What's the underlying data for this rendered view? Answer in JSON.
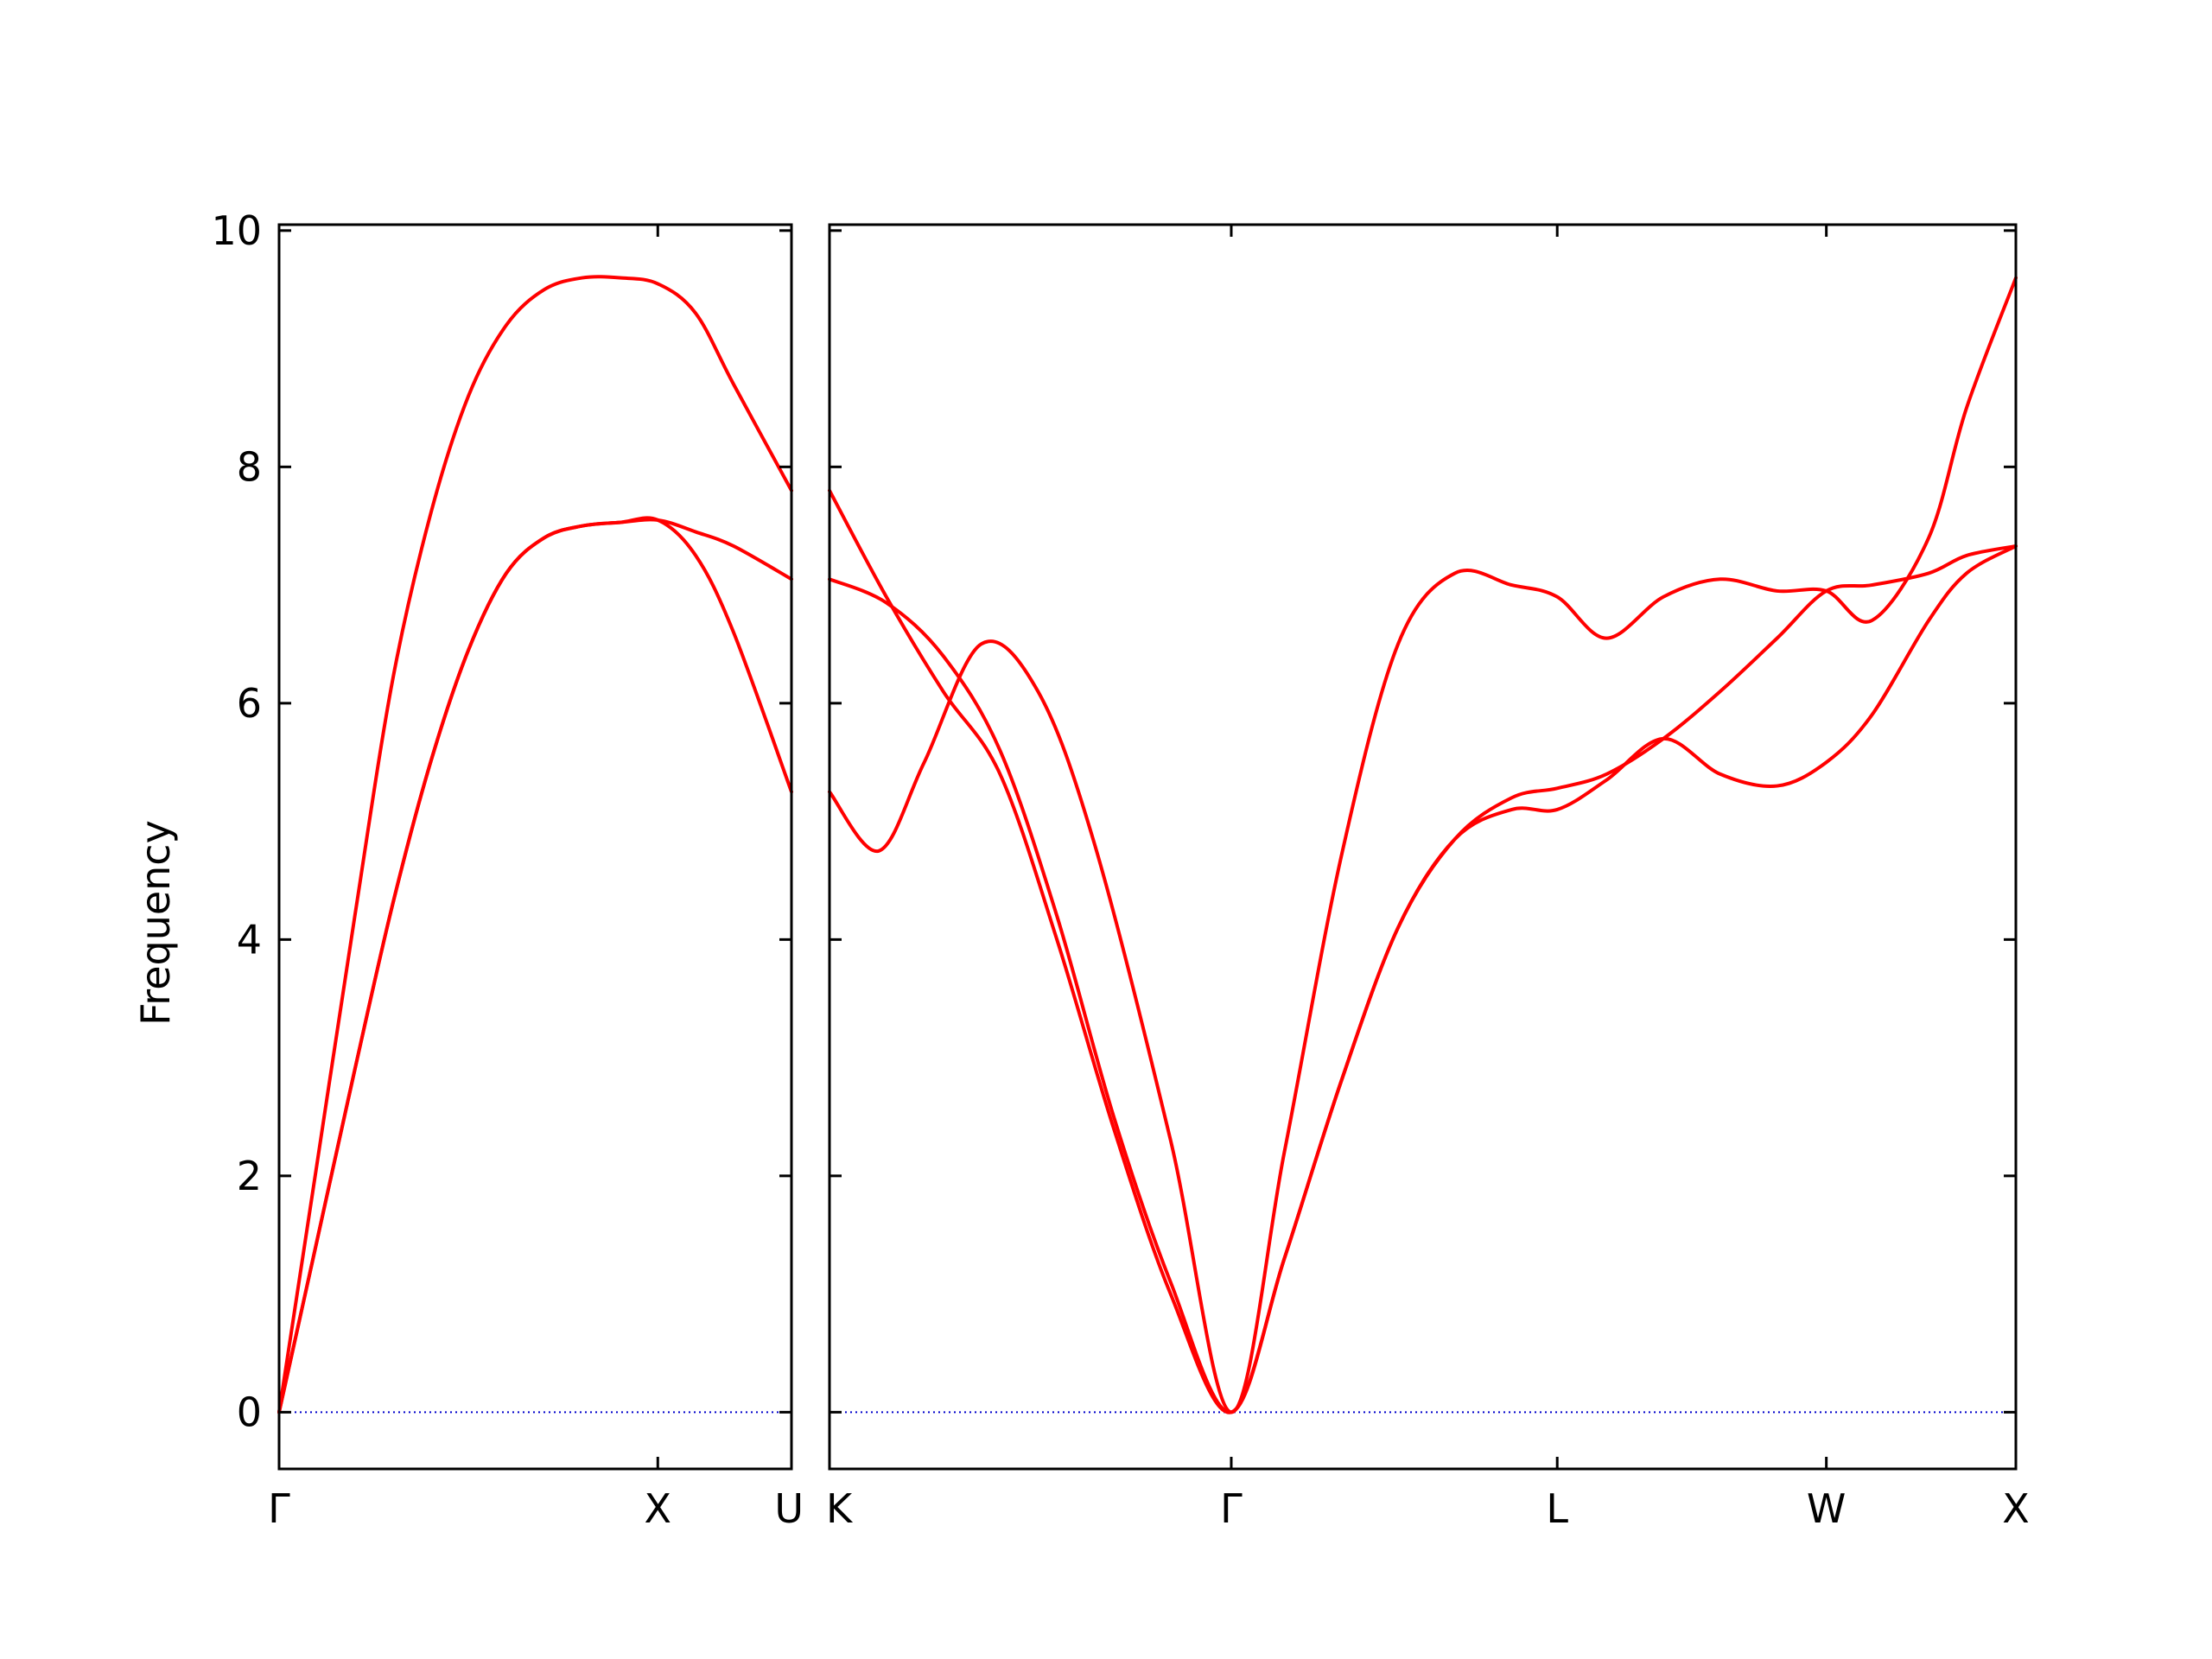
{
  "chart_data": {
    "type": "line",
    "title": "",
    "ylabel": "Frequency",
    "ylim": [
      -0.48,
      10.05
    ],
    "y_ticks": [
      "0",
      "2",
      "4",
      "6",
      "8",
      "10"
    ],
    "colors": {
      "bands": "#ff0000",
      "zero_line": "#0000cc",
      "axes": "#000000",
      "background": "#ffffff"
    },
    "grid": false,
    "panels": [
      {
        "name": "Γ-X-U",
        "x_labels": [
          "Γ",
          "X",
          "U"
        ],
        "x_positions": [
          0,
          1,
          1.353
        ],
        "series": [
          {
            "x": [
              0,
              0.1,
              0.2,
              0.3,
              0.4,
              0.5,
              0.6,
              0.7,
              0.8,
              0.9,
              1.0,
              1.1,
              1.2,
              1.353
            ],
            "y": [
              0,
              1.45,
              2.9,
              4.3,
              5.5,
              6.45,
              7.1,
              7.4,
              7.5,
              7.53,
              7.55,
              7.45,
              7.33,
              7.05
            ]
          },
          {
            "x": [
              0,
              0.1,
              0.2,
              0.3,
              0.4,
              0.5,
              0.6,
              0.7,
              0.8,
              0.9,
              1.0,
              1.1,
              1.2,
              1.353
            ],
            "y": [
              0,
              2.1,
              4.2,
              6.2,
              7.6,
              8.6,
              9.2,
              9.5,
              9.6,
              9.6,
              9.55,
              9.3,
              8.7,
              7.8
            ]
          },
          {
            "x": [
              0,
              0.1,
              0.2,
              0.3,
              0.4,
              0.5,
              0.6,
              0.7,
              0.8,
              0.9,
              1.0,
              1.1,
              1.2,
              1.353
            ],
            "y": [
              0,
              1.45,
              2.9,
              4.3,
              5.5,
              6.45,
              7.1,
              7.4,
              7.5,
              7.53,
              7.55,
              7.25,
              6.6,
              5.25
            ]
          }
        ]
      },
      {
        "name": "K-Γ-L-W-X",
        "x_labels": [
          "K",
          "Γ",
          "L",
          "W",
          "X"
        ],
        "x_positions": [
          0,
          1.06,
          1.92,
          2.63,
          3.13
        ],
        "series": [
          {
            "x": [
              0,
              0.15,
              0.3,
              0.45,
              0.6,
              0.75,
              0.9,
              1.06,
              1.2,
              1.35,
              1.5,
              1.65,
              1.8,
              1.92,
              2.05,
              2.2,
              2.35,
              2.5,
              2.63,
              2.75,
              2.9,
              3.0,
              3.13
            ],
            "y": [
              7.05,
              6.85,
              6.4,
              5.6,
              4.2,
              2.5,
              1.1,
              0,
              1.3,
              2.8,
              4.1,
              4.85,
              5.2,
              5.28,
              5.4,
              5.7,
              6.1,
              6.55,
              6.95,
              7.0,
              7.1,
              7.25,
              7.33
            ]
          },
          {
            "x": [
              0,
              0.15,
              0.3,
              0.45,
              0.6,
              0.75,
              0.9,
              1.06,
              1.2,
              1.35,
              1.5,
              1.65,
              1.8,
              1.92,
              2.05,
              2.2,
              2.35,
              2.5,
              2.63,
              2.75,
              2.9,
              3.0,
              3.13
            ],
            "y": [
              7.8,
              6.9,
              6.1,
              5.4,
              4.0,
              2.4,
              1.0,
              0,
              1.3,
              2.8,
              4.1,
              4.85,
              5.1,
              5.1,
              5.35,
              5.7,
              5.4,
              5.3,
              5.5,
              5.9,
              6.7,
              7.1,
              7.33
            ]
          },
          {
            "x": [
              0,
              0.13,
              0.25,
              0.4,
              0.55,
              0.7,
              0.9,
              1.06,
              1.2,
              1.35,
              1.5,
              1.65,
              1.8,
              1.92,
              2.05,
              2.2,
              2.35,
              2.5,
              2.63,
              2.75,
              2.9,
              3.0,
              3.13
            ],
            "y": [
              5.25,
              4.75,
              5.5,
              6.5,
              6.1,
              4.8,
              2.3,
              0,
              2.2,
              4.7,
              6.5,
              7.1,
              7.0,
              6.9,
              6.55,
              6.9,
              7.05,
              6.95,
              6.95,
              6.7,
              7.4,
              8.5,
              9.6
            ]
          }
        ]
      }
    ]
  }
}
